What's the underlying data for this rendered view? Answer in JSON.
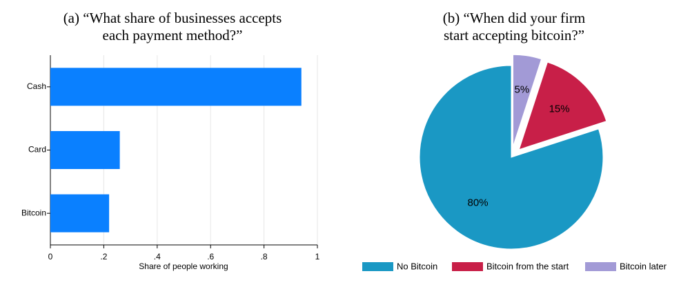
{
  "chart_data": [
    {
      "type": "bar",
      "orientation": "horizontal",
      "title": [
        "(a) “What share of businesses accepts",
        "each payment method?”"
      ],
      "categories": [
        "Cash",
        "Card",
        "Bitcoin"
      ],
      "values": [
        0.94,
        0.26,
        0.22
      ],
      "color": "#0a80ff",
      "xlabel": "Share of people working",
      "xlim": [
        0,
        1
      ],
      "xticks": [
        0,
        {
          "value": 0.2,
          "label": ".2"
        },
        {
          "value": 0.4,
          "label": ".4"
        },
        {
          "value": 0.6,
          "label": ".6"
        },
        {
          "value": 0.8,
          "label": ".8"
        },
        1
      ],
      "grid": true
    },
    {
      "type": "pie",
      "title": [
        "(b) “When did your firm",
        "start accepting bitcoin?”"
      ],
      "categories": [
        "No Bitcoin",
        "Bitcoin from the start",
        "Bitcoin later"
      ],
      "values": [
        80,
        15,
        5
      ],
      "value_labels": [
        "80%",
        "15%",
        "5%"
      ],
      "colors": [
        "#1a98c4",
        "#c81f48",
        "#a29ad6"
      ],
      "explode": [
        false,
        true,
        true
      ],
      "legend": "bottom"
    }
  ]
}
